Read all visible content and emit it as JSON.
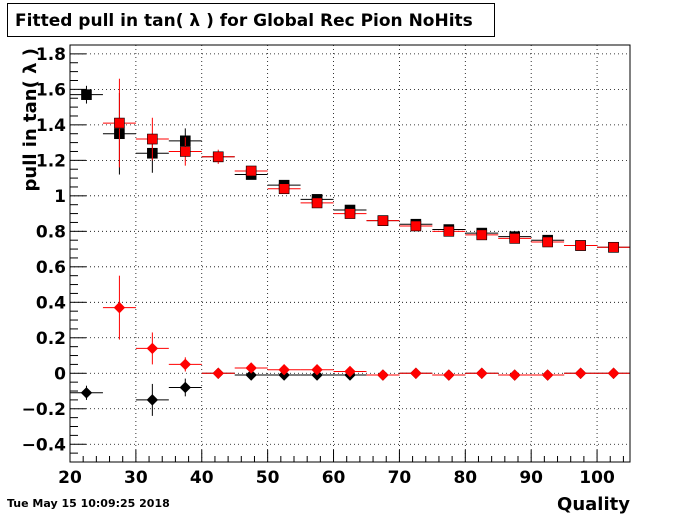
{
  "title": "Fitted pull in tan( λ ) for Global Rec Pion NoHits",
  "timestamp": "Tue May 15 10:09:25 2018",
  "chart_data": {
    "type": "scatter",
    "xlabel": "Quality",
    "ylabel": "pull in tan( λ )",
    "xlim": [
      20,
      105
    ],
    "ylim": [
      -0.5,
      1.85
    ],
    "xticks": [
      20,
      30,
      40,
      50,
      60,
      70,
      80,
      90,
      100
    ],
    "xtick_labels": [
      "20",
      "30",
      "40",
      "50",
      "60",
      "70",
      "80",
      "90",
      "100"
    ],
    "yticks": [
      -0.4,
      -0.2,
      0,
      0.2,
      0.4,
      0.6,
      0.8,
      1,
      1.2,
      1.4,
      1.6,
      1.8
    ],
    "ytick_labels": [
      "−0.4",
      "−0.2",
      "0",
      "0.2",
      "0.4",
      "0.6",
      "0.8",
      "1",
      "1.2",
      "1.4",
      "1.6",
      "1.8"
    ],
    "grid": true,
    "bin_half_width": 2.5,
    "series": [
      {
        "marker": "square",
        "color": "#000000",
        "x": [
          22.5,
          27.5,
          32.5,
          37.5,
          42.5,
          47.5,
          52.5,
          57.5,
          62.5,
          67.5,
          72.5,
          77.5,
          82.5,
          87.5,
          92.5,
          97.5,
          102.5
        ],
        "y": [
          1.57,
          1.35,
          1.24,
          1.31,
          1.22,
          1.12,
          1.06,
          0.98,
          0.92,
          0.86,
          0.84,
          0.81,
          0.79,
          0.77,
          0.75,
          0.72,
          0.71
        ],
        "yerr": [
          0.05,
          0.23,
          0.11,
          0.07,
          0.03,
          0.02,
          0.02,
          0.01,
          0.01,
          0.01,
          0.01,
          0.01,
          0.01,
          0.01,
          0.01,
          0.01,
          0.01
        ]
      },
      {
        "marker": "square",
        "color": "#ff0000",
        "x": [
          27.5,
          32.5,
          37.5,
          42.5,
          47.5,
          52.5,
          57.5,
          62.5,
          67.5,
          72.5,
          77.5,
          82.5,
          87.5,
          92.5,
          97.5,
          102.5
        ],
        "y": [
          1.41,
          1.32,
          1.25,
          1.22,
          1.14,
          1.04,
          0.96,
          0.9,
          0.86,
          0.83,
          0.8,
          0.78,
          0.76,
          0.74,
          0.72,
          0.71
        ],
        "yerr": [
          0.25,
          0.12,
          0.08,
          0.04,
          0.02,
          0.02,
          0.01,
          0.01,
          0.01,
          0.01,
          0.01,
          0.01,
          0.01,
          0.01,
          0.01,
          0.01
        ]
      },
      {
        "marker": "diamond",
        "color": "#000000",
        "x": [
          22.5,
          32.5,
          37.5,
          42.5,
          47.5,
          52.5,
          57.5,
          62.5,
          67.5,
          72.5,
          77.5,
          82.5,
          87.5,
          92.5,
          97.5,
          102.5
        ],
        "y": [
          -0.11,
          -0.15,
          -0.08,
          0.0,
          -0.01,
          -0.01,
          -0.01,
          -0.01,
          -0.01,
          0.0,
          -0.01,
          0.0,
          -0.01,
          -0.01,
          0.0,
          0.0
        ],
        "yerr": [
          0.04,
          0.09,
          0.05,
          0.02,
          0.01,
          0.01,
          0.01,
          0.01,
          0.01,
          0.01,
          0.01,
          0.01,
          0.01,
          0.01,
          0.01,
          0.01
        ]
      },
      {
        "marker": "diamond",
        "color": "#ff0000",
        "x": [
          27.5,
          32.5,
          37.5,
          42.5,
          47.5,
          52.5,
          57.5,
          62.5,
          67.5,
          72.5,
          77.5,
          82.5,
          87.5,
          92.5,
          97.5,
          102.5
        ],
        "y": [
          0.37,
          0.14,
          0.05,
          0.0,
          0.03,
          0.02,
          0.02,
          0.01,
          -0.01,
          0.0,
          -0.01,
          0.0,
          -0.01,
          -0.01,
          0.0,
          0.0
        ],
        "yerr": [
          0.18,
          0.09,
          0.04,
          0.02,
          0.01,
          0.01,
          0.01,
          0.01,
          0.01,
          0.01,
          0.01,
          0.01,
          0.01,
          0.01,
          0.01,
          0.01
        ]
      }
    ]
  }
}
